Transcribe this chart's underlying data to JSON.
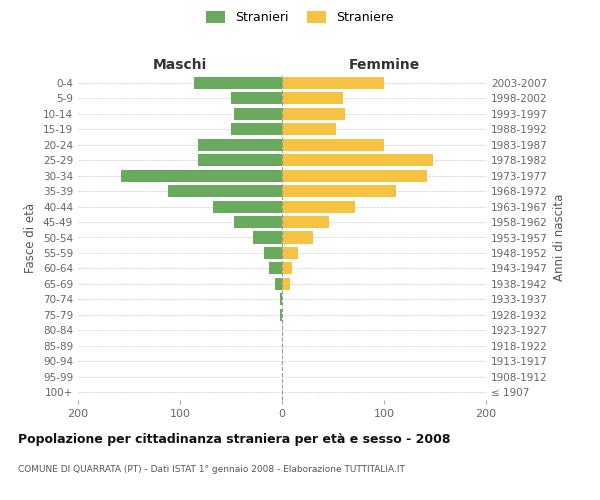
{
  "age_groups": [
    "100+",
    "95-99",
    "90-94",
    "85-89",
    "80-84",
    "75-79",
    "70-74",
    "65-69",
    "60-64",
    "55-59",
    "50-54",
    "45-49",
    "40-44",
    "35-39",
    "30-34",
    "25-29",
    "20-24",
    "15-19",
    "10-14",
    "5-9",
    "0-4"
  ],
  "birth_years": [
    "≤ 1907",
    "1908-1912",
    "1913-1917",
    "1918-1922",
    "1923-1927",
    "1928-1932",
    "1933-1937",
    "1938-1942",
    "1943-1947",
    "1948-1952",
    "1953-1957",
    "1958-1962",
    "1963-1967",
    "1968-1972",
    "1973-1977",
    "1978-1982",
    "1983-1987",
    "1988-1992",
    "1993-1997",
    "1998-2002",
    "2003-2007"
  ],
  "maschi": [
    0,
    0,
    0,
    0,
    0,
    2,
    2,
    7,
    13,
    18,
    28,
    47,
    68,
    112,
    158,
    82,
    82,
    50,
    47,
    50,
    86
  ],
  "femmine": [
    0,
    0,
    0,
    0,
    0,
    0,
    0,
    8,
    10,
    16,
    30,
    46,
    72,
    112,
    142,
    148,
    100,
    53,
    62,
    60,
    100
  ],
  "color_maschi": "#6aaa5e",
  "color_femmine": "#f5c242",
  "title": "Popolazione per cittadinanza straniera per età e sesso - 2008",
  "subtitle": "COMUNE DI QUARRATA (PT) - Dati ISTAT 1° gennaio 2008 - Elaborazione TUTTITALIA.IT",
  "ylabel_left": "Fasce di età",
  "ylabel_right": "Anni di nascita",
  "xlabel_maschi": "Maschi",
  "xlabel_femmine": "Femmine",
  "legend_maschi": "Stranieri",
  "legend_femmine": "Straniere",
  "xlim": 200,
  "bg_color": "#ffffff",
  "grid_color": "#cccccc"
}
